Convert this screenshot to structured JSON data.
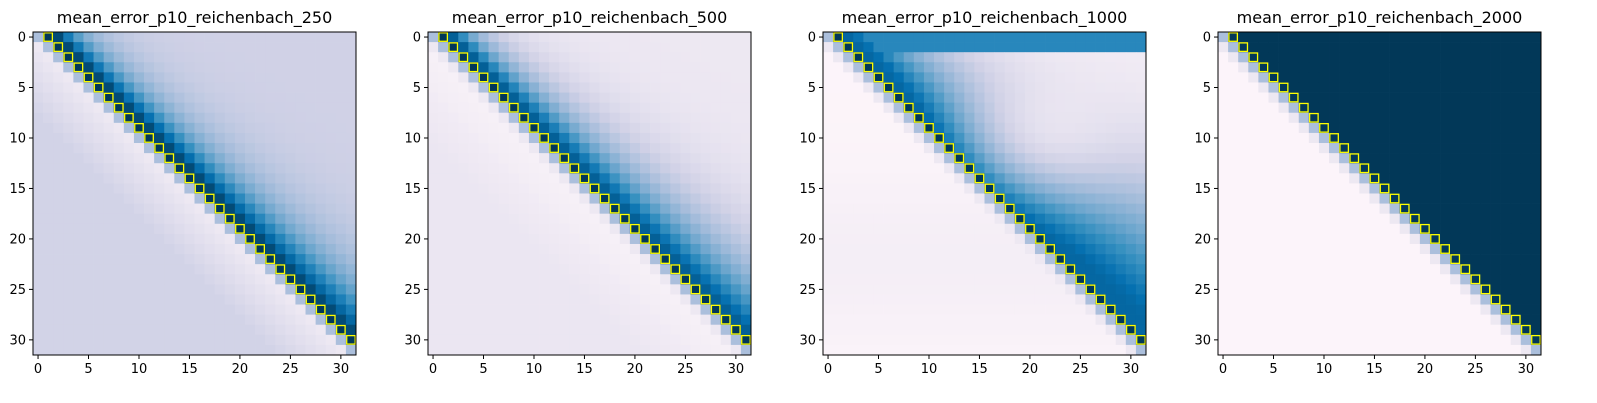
{
  "chart_data": [
    {
      "type": "heatmap",
      "title": "mean_error_p10_reichenbach_250",
      "variant": 250,
      "rows": 32,
      "cols": 32,
      "xticks": [
        0,
        5,
        10,
        15,
        20,
        25,
        30
      ],
      "yticks": [
        0,
        5,
        10,
        15,
        20,
        25,
        30
      ],
      "xlim": [
        -0.5,
        31.5
      ],
      "ylim": [
        31.5,
        -0.5
      ],
      "colormap": "PuBu",
      "highlight": "diagonal cells (i, i+1) outlined in yellow",
      "highlight_color": "#ffff00"
    },
    {
      "type": "heatmap",
      "title": "mean_error_p10_reichenbach_500",
      "variant": 500,
      "rows": 32,
      "cols": 32,
      "xticks": [
        0,
        5,
        10,
        15,
        20,
        25,
        30
      ],
      "yticks": [
        0,
        5,
        10,
        15,
        20,
        25,
        30
      ],
      "xlim": [
        -0.5,
        31.5
      ],
      "ylim": [
        31.5,
        -0.5
      ],
      "colormap": "PuBu",
      "highlight": "diagonal cells (i, i+1) outlined in yellow",
      "highlight_color": "#ffff00"
    },
    {
      "type": "heatmap",
      "title": "mean_error_p10_reichenbach_1000",
      "variant": 1000,
      "rows": 32,
      "cols": 32,
      "xticks": [
        0,
        5,
        10,
        15,
        20,
        25,
        30
      ],
      "yticks": [
        0,
        5,
        10,
        15,
        20,
        25,
        30
      ],
      "xlim": [
        -0.5,
        31.5
      ],
      "ylim": [
        31.5,
        -0.5
      ],
      "colormap": "PuBu",
      "highlight": "diagonal cells (i, i+1) outlined in yellow",
      "highlight_color": "#ffff00"
    },
    {
      "type": "heatmap",
      "title": "mean_error_p10_reichenbach_2000",
      "variant": 2000,
      "rows": 32,
      "cols": 32,
      "xticks": [
        0,
        5,
        10,
        15,
        20,
        25,
        30
      ],
      "yticks": [
        0,
        5,
        10,
        15,
        20,
        25,
        30
      ],
      "xlim": [
        -0.5,
        31.5
      ],
      "ylim": [
        31.5,
        -0.5
      ],
      "colormap": "PuBu",
      "highlight": "diagonal cells (i, i+1) outlined in yellow",
      "highlight_color": "#ffff00"
    }
  ]
}
